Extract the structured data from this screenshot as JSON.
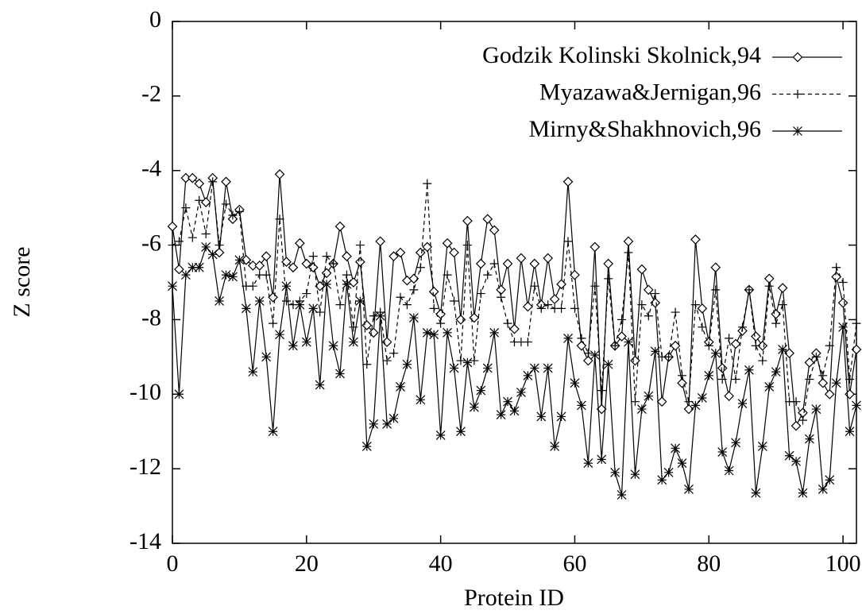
{
  "chart_data": {
    "type": "line",
    "xlabel": "Protein ID",
    "ylabel": "Z score",
    "x": [
      0,
      1,
      2,
      3,
      4,
      5,
      6,
      7,
      8,
      9,
      10,
      11,
      12,
      13,
      14,
      15,
      16,
      17,
      18,
      19,
      20,
      21,
      22,
      23,
      24,
      25,
      26,
      27,
      28,
      29,
      30,
      31,
      32,
      33,
      34,
      35,
      36,
      37,
      38,
      39,
      40,
      41,
      42,
      43,
      44,
      45,
      46,
      47,
      48,
      49,
      50,
      51,
      52,
      53,
      54,
      55,
      56,
      57,
      58,
      59,
      60,
      61,
      62,
      63,
      64,
      65,
      66,
      67,
      68,
      69,
      70,
      71,
      72,
      73,
      74,
      75,
      76,
      77,
      78,
      79,
      80,
      81,
      82,
      83,
      84,
      85,
      86,
      87,
      88,
      89,
      90,
      91,
      92,
      93,
      94,
      95,
      96,
      97,
      98,
      99,
      100,
      101,
      102
    ],
    "xlim": [
      0,
      102
    ],
    "xticks": [
      0,
      20,
      40,
      60,
      80,
      100
    ],
    "ylim": [
      -14,
      0
    ],
    "yticks": [
      0,
      -2,
      -4,
      -6,
      -8,
      -10,
      -12,
      -14
    ],
    "legend": "top right",
    "series": [
      {
        "name": "Godzik Kolinski Skolnick,94",
        "color": "#000000",
        "marker": "diamond",
        "dashed": false,
        "values": [
          -5.5,
          -6.65,
          -4.2,
          -4.2,
          -4.35,
          -4.85,
          -4.2,
          -6.2,
          -4.3,
          -5.3,
          -5.05,
          -6.4,
          -6.55,
          -6.55,
          -6.3,
          -7.4,
          -4.1,
          -6.45,
          -6.6,
          -5.95,
          -6.5,
          -6.6,
          -7.1,
          -6.75,
          -6.5,
          -5.5,
          -6.3,
          -7.0,
          -6.45,
          -8.15,
          -8.35,
          -5.9,
          -8.6,
          -6.3,
          -6.2,
          -6.95,
          -6.9,
          -6.2,
          -6.05,
          -7.25,
          -7.85,
          -5.95,
          -6.2,
          -8.0,
          -5.35,
          -7.95,
          -6.5,
          -5.3,
          -5.6,
          -7.2,
          -6.5,
          -8.25,
          -6.35,
          -7.65,
          -6.5,
          -7.6,
          -6.35,
          -7.45,
          -7.05,
          -4.3,
          -6.8,
          -8.7,
          -9.1,
          -6.05,
          -10.4,
          -6.5,
          -8.7,
          -8.45,
          -5.9,
          -9.1,
          -6.65,
          -7.2,
          -7.55,
          -10.2,
          -9.0,
          -8.7,
          -9.7,
          -10.4,
          -5.85,
          -7.7,
          -8.6,
          -6.6,
          -9.3,
          -10.05,
          -8.65,
          -8.3,
          -7.2,
          -8.45,
          -8.7,
          -6.9,
          -7.85,
          -7.15,
          -8.9,
          -10.85,
          -10.5,
          -9.15,
          -8.9,
          -9.7,
          -10.0,
          -6.85,
          -7.55,
          -10.0,
          -8.8
        ]
      },
      {
        "name": "Myazawa&Jernigan,96",
        "color": "#000000",
        "marker": "plus",
        "dashed": true,
        "values": [
          -6.0,
          -5.9,
          -5.0,
          -5.8,
          -4.8,
          -5.7,
          -4.3,
          -6.0,
          -4.9,
          -5.2,
          -5.1,
          -7.1,
          -7.1,
          -6.8,
          -6.8,
          -8.1,
          -5.3,
          -7.5,
          -7.6,
          -7.5,
          -7.3,
          -6.3,
          -7.8,
          -6.3,
          -6.5,
          -7.6,
          -6.8,
          -8.2,
          -6.0,
          -9.2,
          -7.9,
          -7.8,
          -9.1,
          -8.9,
          -7.4,
          -7.6,
          -7.2,
          -6.6,
          -4.35,
          -7.7,
          -8.1,
          -6.8,
          -7.5,
          -9.1,
          -6.0,
          -9.1,
          -7.3,
          -6.8,
          -6.5,
          -7.4,
          -8.1,
          -8.6,
          -8.6,
          -8.6,
          -7.1,
          -7.7,
          -7.6,
          -7.7,
          -7.7,
          -5.9,
          -7.7,
          -8.5,
          -8.9,
          -7.1,
          -9.9,
          -6.9,
          -8.7,
          -8.0,
          -6.2,
          -10.2,
          -7.6,
          -7.9,
          -7.3,
          -9.0,
          -9.0,
          -7.8,
          -9.5,
          -10.2,
          -7.6,
          -8.2,
          -8.7,
          -7.2,
          -9.6,
          -8.5,
          -9.6,
          -8.2,
          -7.2,
          -8.7,
          -9.1,
          -7.1,
          -8.1,
          -7.6,
          -10.2,
          -10.2,
          -10.7,
          -9.6,
          -9.0,
          -9.5,
          -8.7,
          -6.6,
          -7.0,
          -9.6,
          -8.1
        ]
      },
      {
        "name": "Mirny&Shakhnovich,96",
        "color": "#000000",
        "marker": "star",
        "dashed": false,
        "values": [
          -7.1,
          -10.0,
          -6.8,
          -6.6,
          -6.6,
          -6.05,
          -6.25,
          -7.5,
          -6.8,
          -6.85,
          -6.4,
          -7.7,
          -9.4,
          -7.5,
          -9.0,
          -11.0,
          -8.4,
          -7.1,
          -8.7,
          -7.6,
          -8.6,
          -7.7,
          -9.75,
          -7.05,
          -8.7,
          -9.45,
          -7.05,
          -8.6,
          -7.5,
          -11.4,
          -10.8,
          -7.9,
          -10.8,
          -10.65,
          -9.8,
          -9.2,
          -7.95,
          -10.15,
          -8.35,
          -8.4,
          -11.1,
          -8.35,
          -9.3,
          -11.0,
          -9.15,
          -10.35,
          -9.9,
          -9.3,
          -8.35,
          -10.55,
          -10.2,
          -10.45,
          -9.95,
          -9.5,
          -9.3,
          -10.6,
          -9.3,
          -11.4,
          -10.6,
          -8.5,
          -9.7,
          -10.3,
          -11.85,
          -8.95,
          -11.75,
          -9.2,
          -12.1,
          -12.7,
          -8.6,
          -12.15,
          -10.4,
          -10.05,
          -8.85,
          -12.3,
          -12.1,
          -11.45,
          -11.85,
          -12.55,
          -10.3,
          -10.1,
          -9.5,
          -8.9,
          -11.55,
          -12.05,
          -11.3,
          -10.25,
          -9.35,
          -12.65,
          -11.4,
          -9.8,
          -9.4,
          -8.8,
          -11.65,
          -11.8,
          -12.65,
          -11.2,
          -10.4,
          -12.55,
          -12.3,
          -9.7,
          -8.2,
          -11.0,
          -10.3
        ]
      }
    ]
  }
}
